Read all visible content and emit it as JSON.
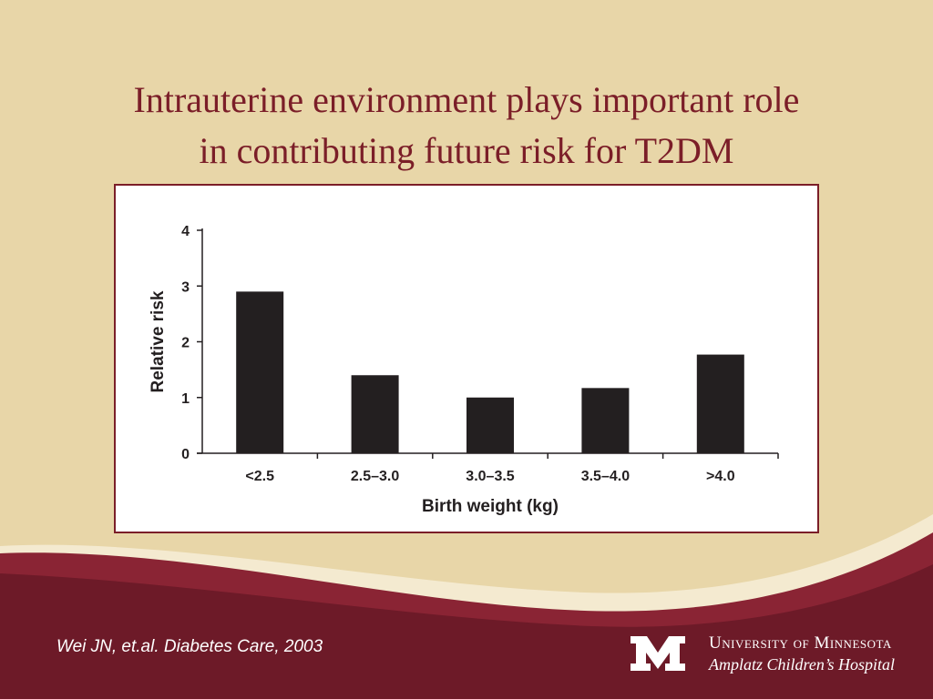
{
  "slide": {
    "title_line1": "Intrauterine environment plays important role",
    "title_line2": "in contributing future risk for T2DM",
    "citation": "Wei JN, et.al. Diabetes Care, 2003",
    "university_name": "University of Minnesota",
    "hospital_name": "Amplatz Children’s Hospital",
    "logo_letter": "M"
  },
  "colors": {
    "background": "#e8d6a8",
    "maroon": "#7b1e28",
    "bar": "#231f20"
  },
  "chart_data": {
    "type": "bar",
    "title": "",
    "xlabel": "Birth weight (kg)",
    "ylabel": "Relative risk",
    "categories": [
      "<2.5",
      "2.5–3.0",
      "3.0–3.5",
      "3.5–4.0",
      ">4.0"
    ],
    "values": [
      2.9,
      1.4,
      1.0,
      1.17,
      1.77
    ],
    "ylim": [
      0,
      4
    ],
    "yticks": [
      "0",
      "1",
      "2",
      "3",
      "4"
    ],
    "grid": false,
    "legend": "none"
  }
}
